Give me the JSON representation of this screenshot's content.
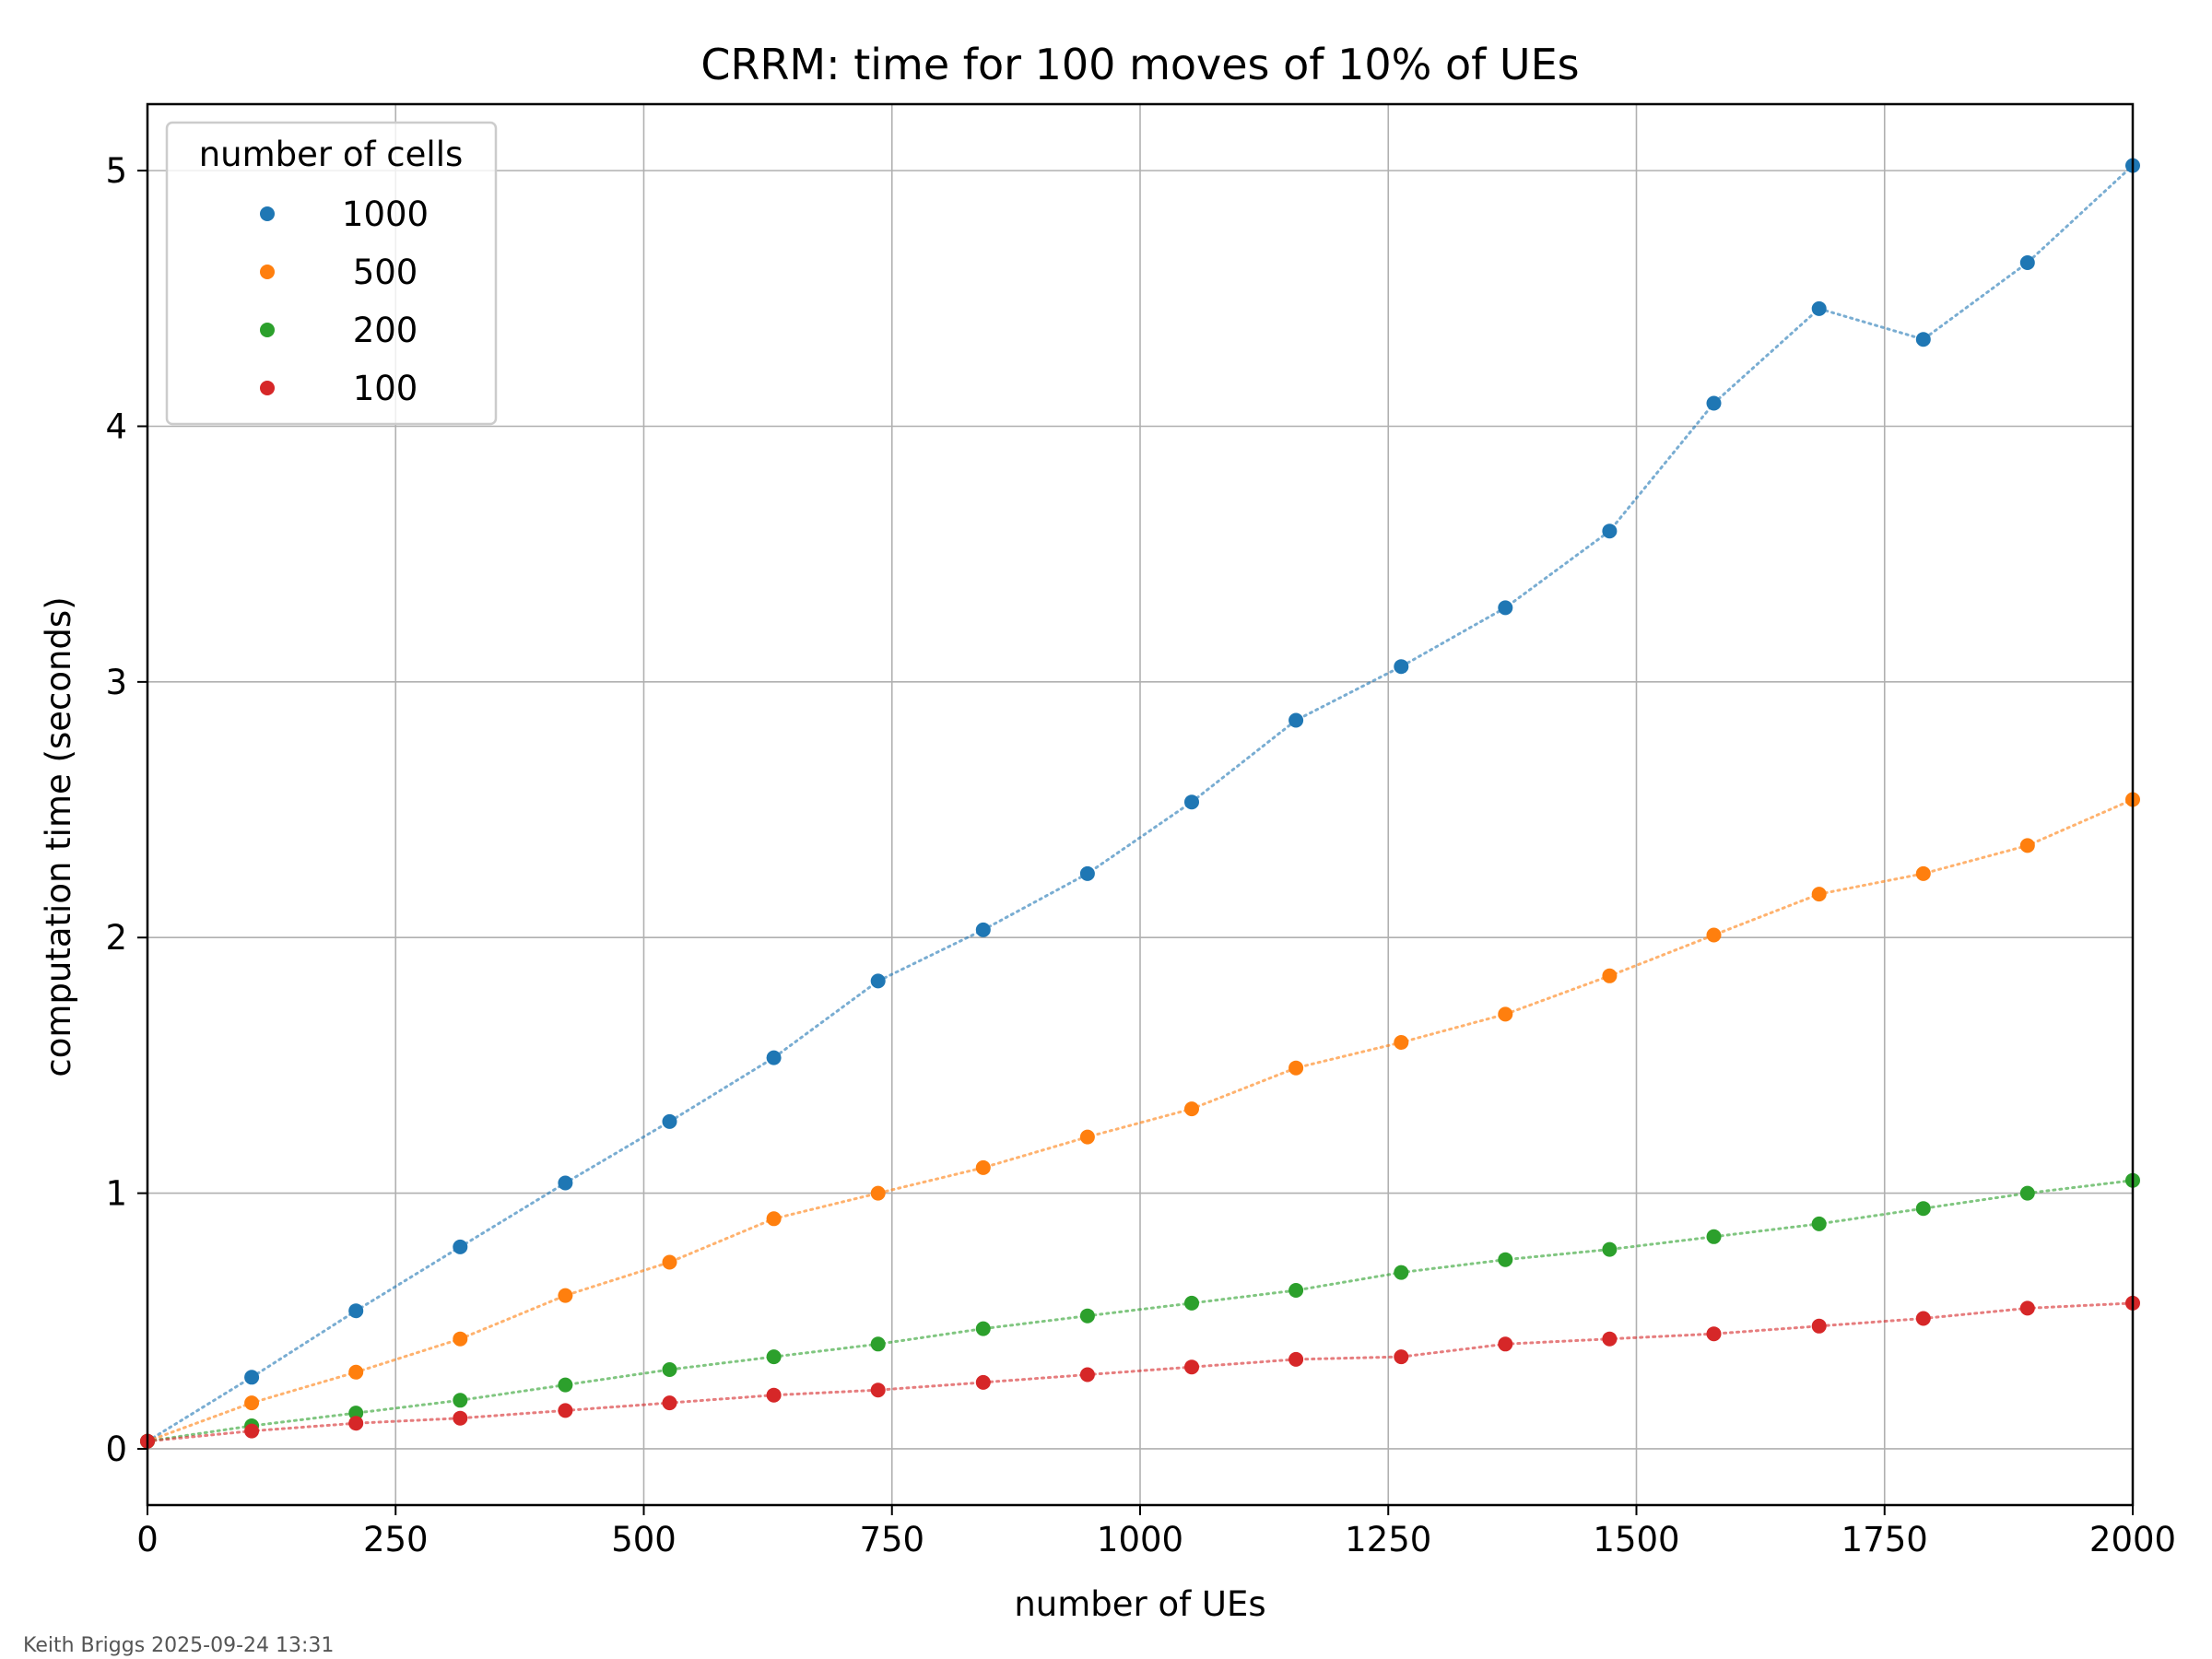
{
  "footer_note": "Keith Briggs 2025-09-24 13:31",
  "chart_data": {
    "type": "scatter",
    "title": "CRRM: time for 100 moves of 10% of UEs",
    "xlabel": "number of UEs",
    "ylabel": "computation time (seconds)",
    "xlim": [
      0,
      2000
    ],
    "ylim": [
      -0.22,
      5.26
    ],
    "xticks": [
      0,
      250,
      500,
      750,
      1000,
      1250,
      1500,
      1750,
      2000
    ],
    "xtick_labels": [
      "0",
      "250",
      "500",
      "750",
      "1000",
      "1250",
      "1500",
      "1750",
      "2000"
    ],
    "yticks": [
      0,
      1,
      2,
      3,
      4,
      5
    ],
    "ytick_labels": [
      "0",
      "1",
      "2",
      "3",
      "4",
      "5"
    ],
    "grid": true,
    "connect_style": "dotted lines",
    "legend": {
      "title": "number of cells",
      "placement": "top-left"
    },
    "x": [
      0,
      105,
      210,
      315,
      421,
      526,
      631,
      736,
      842,
      947,
      1052,
      1157,
      1263,
      1368,
      1473,
      1578,
      1684,
      1789,
      1894,
      2000
    ],
    "series": [
      {
        "name": "1000",
        "color": "#1f77b4",
        "values": [
          0.03,
          0.28,
          0.54,
          0.79,
          1.04,
          1.28,
          1.53,
          1.83,
          2.03,
          2.25,
          2.53,
          2.85,
          3.06,
          3.29,
          3.59,
          4.09,
          4.46,
          4.34,
          4.64,
          5.02
        ]
      },
      {
        "name": "500",
        "color": "#ff7f0e",
        "values": [
          0.03,
          0.18,
          0.3,
          0.43,
          0.6,
          0.73,
          0.9,
          1.0,
          1.1,
          1.22,
          1.33,
          1.49,
          1.59,
          1.7,
          1.85,
          2.01,
          2.17,
          2.25,
          2.36,
          2.54
        ]
      },
      {
        "name": "200",
        "color": "#2ca02c",
        "values": [
          0.03,
          0.09,
          0.14,
          0.19,
          0.25,
          0.31,
          0.36,
          0.41,
          0.47,
          0.52,
          0.57,
          0.62,
          0.69,
          0.74,
          0.78,
          0.83,
          0.88,
          0.94,
          1.0,
          1.05
        ]
      },
      {
        "name": "100",
        "color": "#d62728",
        "values": [
          0.03,
          0.07,
          0.1,
          0.12,
          0.15,
          0.18,
          0.21,
          0.23,
          0.26,
          0.29,
          0.32,
          0.35,
          0.36,
          0.41,
          0.43,
          0.45,
          0.48,
          0.51,
          0.55,
          0.57
        ]
      }
    ]
  }
}
